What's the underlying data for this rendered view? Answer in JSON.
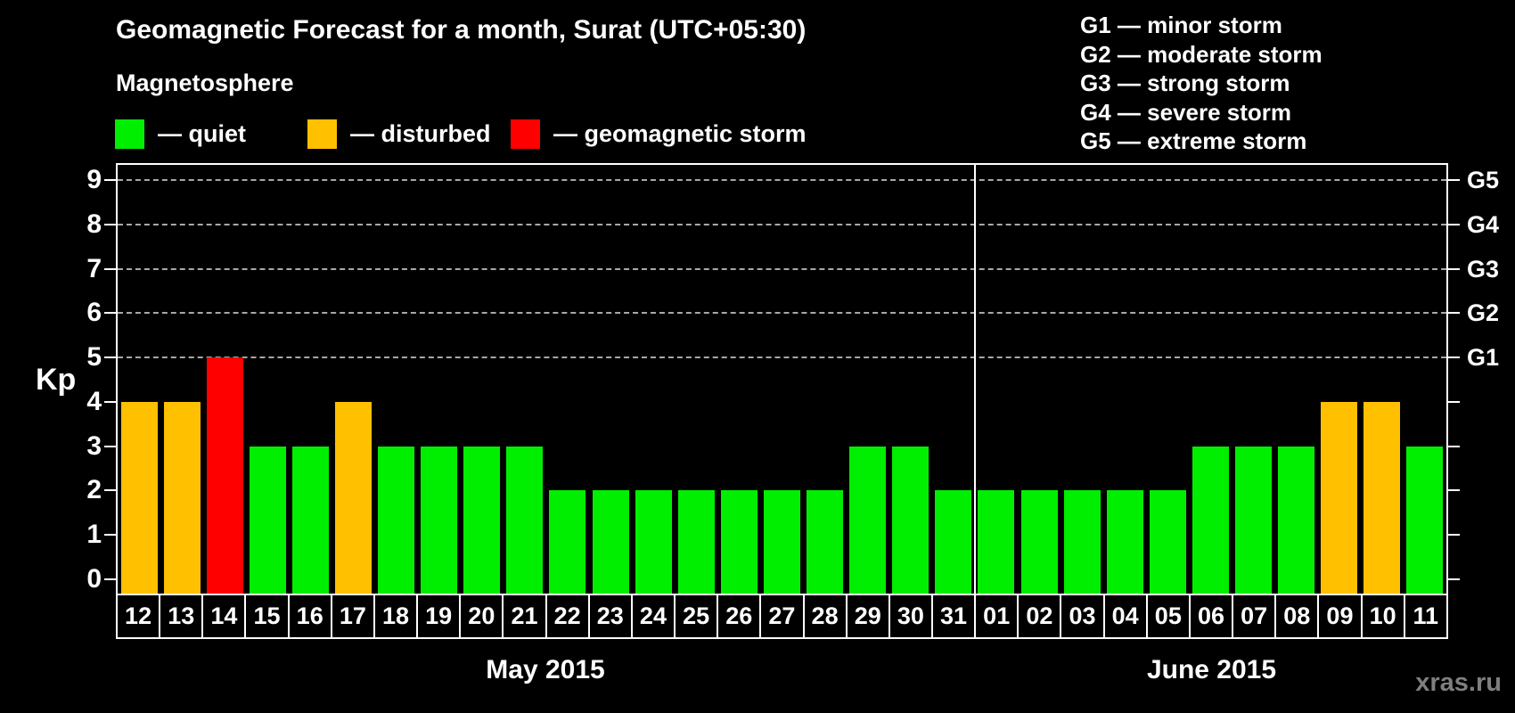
{
  "title": "Geomagnetic Forecast for a month, Surat (UTC+05:30)",
  "subtitle": "Magnetosphere",
  "watermark": "xras.ru",
  "legend": {
    "items": [
      {
        "key": "quiet",
        "label": "— quiet",
        "color": "#00ee00"
      },
      {
        "key": "disturbed",
        "label": "— disturbed",
        "color": "#ffc000"
      },
      {
        "key": "storm",
        "label": "— geomagnetic storm",
        "color": "#ff0000"
      }
    ]
  },
  "storm_scale_legend": [
    {
      "code": "G1",
      "label": "G1 — minor storm"
    },
    {
      "code": "G2",
      "label": "G2 — moderate storm"
    },
    {
      "code": "G3",
      "label": "G3 — strong storm"
    },
    {
      "code": "G4",
      "label": "G4 — severe storm"
    },
    {
      "code": "G5",
      "label": "G5 — extreme storm"
    }
  ],
  "chart_data": {
    "type": "bar",
    "title": "Geomagnetic Forecast for a month, Surat (UTC+05:30)",
    "ylabel": "Kp",
    "ylim": [
      0,
      9
    ],
    "yticks": [
      0,
      1,
      2,
      3,
      4,
      5,
      6,
      7,
      8,
      9
    ],
    "gridlines_at": [
      5,
      6,
      7,
      8,
      9
    ],
    "grid_style": "dashed",
    "right_axis_labels": [
      {
        "kp": 5,
        "label": "G1"
      },
      {
        "kp": 6,
        "label": "G2"
      },
      {
        "kp": 7,
        "label": "G3"
      },
      {
        "kp": 8,
        "label": "G4"
      },
      {
        "kp": 9,
        "label": "G5"
      }
    ],
    "months": [
      {
        "label": "May 2015",
        "days": [
          "12",
          "13",
          "14",
          "15",
          "16",
          "17",
          "18",
          "19",
          "20",
          "21",
          "22",
          "23",
          "24",
          "25",
          "26",
          "27",
          "28",
          "29",
          "30",
          "31"
        ],
        "values": [
          4,
          4,
          5,
          3,
          3,
          4,
          3,
          3,
          3,
          3,
          2,
          2,
          2,
          2,
          2,
          2,
          2,
          3,
          3,
          2
        ]
      },
      {
        "label": "June 2015",
        "days": [
          "01",
          "02",
          "03",
          "04",
          "05",
          "06",
          "07",
          "08",
          "09",
          "10",
          "11"
        ],
        "values": [
          2,
          2,
          2,
          2,
          2,
          3,
          3,
          3,
          4,
          4,
          3
        ]
      }
    ],
    "colors": {
      "quiet": "#00ee00",
      "disturbed": "#ffc000",
      "storm": "#ff0000"
    },
    "color_rule": {
      "quiet": "kp <= 3",
      "disturbed": "kp == 4",
      "storm": "kp >= 5"
    },
    "background": "#000000",
    "axis_color": "#ffffff",
    "legend_position": "top"
  }
}
